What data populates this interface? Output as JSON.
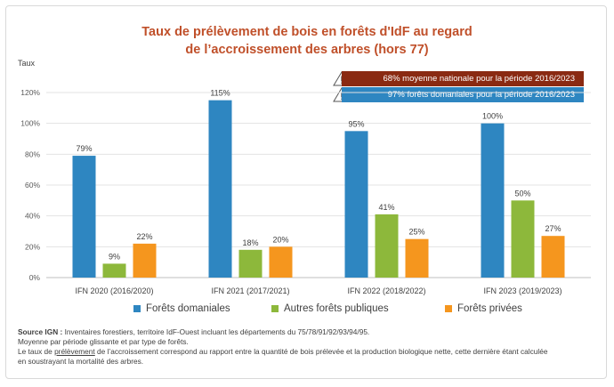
{
  "chart_data": {
    "type": "bar",
    "title": "Taux de prélèvement de bois en forêts d'IdF au regard de l’accroissement des arbres (hors 77)",
    "title_lines": [
      "Taux de prélèvement de bois en forêts d'IdF au regard",
      "de l’accroissement des arbres (hors 77)"
    ],
    "ylabel": "Taux",
    "xlabel": "",
    "ylim": [
      0,
      120
    ],
    "yticks": [
      "0%",
      "20%",
      "40%",
      "60%",
      "80%",
      "100%",
      "120%"
    ],
    "categories": [
      "IFN 2020 (2016/2020)",
      "IFN 2021 (2017/2021)",
      "IFN 2022 (2018/2022)",
      "IFN 2023 (2019/2023)"
    ],
    "series": [
      {
        "name": "Forêts domaniales",
        "color": "#2e86c1",
        "values": [
          79,
          115,
          95,
          100
        ],
        "labels": [
          "79%",
          "115%",
          "95%",
          "100%"
        ]
      },
      {
        "name": "Autres forêts publiques",
        "color": "#8db83b",
        "values": [
          9,
          18,
          41,
          50
        ],
        "labels": [
          "9%",
          "18%",
          "41%",
          "50%"
        ]
      },
      {
        "name": "Forêts privées",
        "color": "#f5961e",
        "values": [
          22,
          20,
          25,
          27
        ],
        "labels": [
          "22%",
          "20%",
          "25%",
          "27%"
        ]
      }
    ],
    "grid": true,
    "legend": "bottom",
    "annotations": [
      {
        "text": "68% moyenne nationale pour la période 2016/2023",
        "color": "#8a2a12"
      },
      {
        "text": "97% forêts domaniales pour la période 2016/2023",
        "color": "#2e86c1"
      }
    ]
  },
  "notes": {
    "source_label": "Source IGN :",
    "source_text": " Inventaires forestiers, territoire IdF-Ouest incluant les départements du 75/78/91/92/93/94/95.",
    "line2": "Moyenne par période glissante et par type de forêts.",
    "line3_pre": "Le taux de ",
    "line3_underlined": "prélèvement",
    "line3_post": " de l’accroissement correspond au rapport entre la quantité de bois prélevée et la production biologique nette, cette dernière étant calculée",
    "line4": "en soustrayant la mortalité des arbres."
  }
}
